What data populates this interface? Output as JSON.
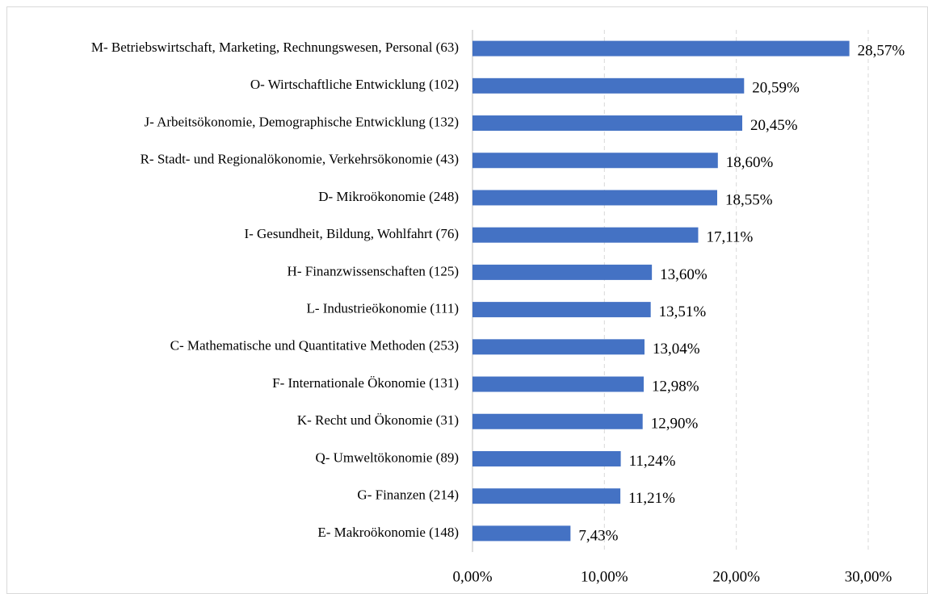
{
  "chart_data": {
    "type": "barh",
    "categories": [
      "M- Betriebswirtschaft, Marketing, Rechnungswesen, Personal (63)",
      "O- Wirtschaftliche Entwicklung (102)",
      "J- Arbeitsökonomie, Demographische Entwicklung (132)",
      "R- Stadt- und Regionalökonomie, Verkehrsökonomie (43)",
      "D- Mikroökonomie (248)",
      "I- Gesundheit, Bildung, Wohlfahrt (76)",
      "H- Finanzwissenschaften (125)",
      "L- Industrieökonomie (111)",
      "C- Mathematische und Quantitative Methoden (253)",
      "F- Internationale Ökonomie (131)",
      "K- Recht und Ökonomie (31)",
      "Q- Umweltökonomie (89)",
      "G- Finanzen (214)",
      "E- Makroökonomie (148)"
    ],
    "values": [
      28.57,
      20.59,
      20.45,
      18.6,
      18.55,
      17.11,
      13.6,
      13.51,
      13.04,
      12.98,
      12.9,
      11.24,
      11.21,
      7.43
    ],
    "value_labels": [
      "28,57%",
      "20,59%",
      "20,45%",
      "18,60%",
      "18,55%",
      "17,11%",
      "13,60%",
      "13,51%",
      "13,04%",
      "12,98%",
      "12,90%",
      "11,24%",
      "11,21%",
      "7,43%"
    ],
    "color": "#4472c4",
    "xlim": [
      0,
      30
    ],
    "xticks": [
      {
        "value": 0,
        "label": "0,00%"
      },
      {
        "value": 10,
        "label": "10,00%"
      },
      {
        "value": 20,
        "label": "20,00%"
      },
      {
        "value": 30,
        "label": "30,00%"
      }
    ],
    "grid": true
  }
}
